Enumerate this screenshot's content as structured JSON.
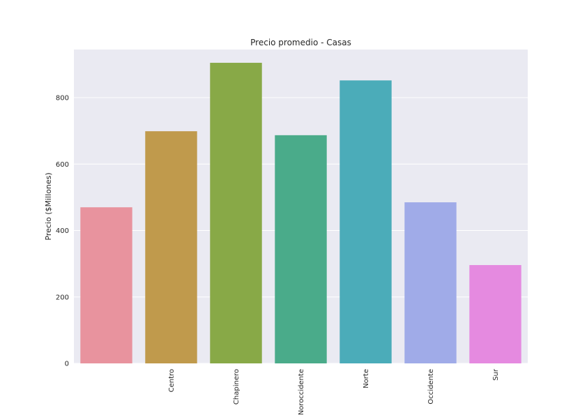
{
  "chart_data": {
    "type": "bar",
    "title": "Precio promedio - Casas",
    "xlabel": "",
    "ylabel": "Precio ($Millones)",
    "categories": [
      "",
      "Centro",
      "Chapinero",
      "Noroccidente",
      "Norte",
      "Occidente",
      "Sur"
    ],
    "values": [
      470,
      699,
      905,
      687,
      852,
      485,
      296
    ],
    "colors": [
      "#e8939e",
      "#c09a4c",
      "#88a947",
      "#4aab8a",
      "#4bacb9",
      "#a0abe8",
      "#e58ae0"
    ],
    "ylim": [
      0,
      945
    ],
    "yticks": [
      0,
      200,
      400,
      600,
      800
    ],
    "grid": true,
    "background": "#eaeaf2"
  }
}
